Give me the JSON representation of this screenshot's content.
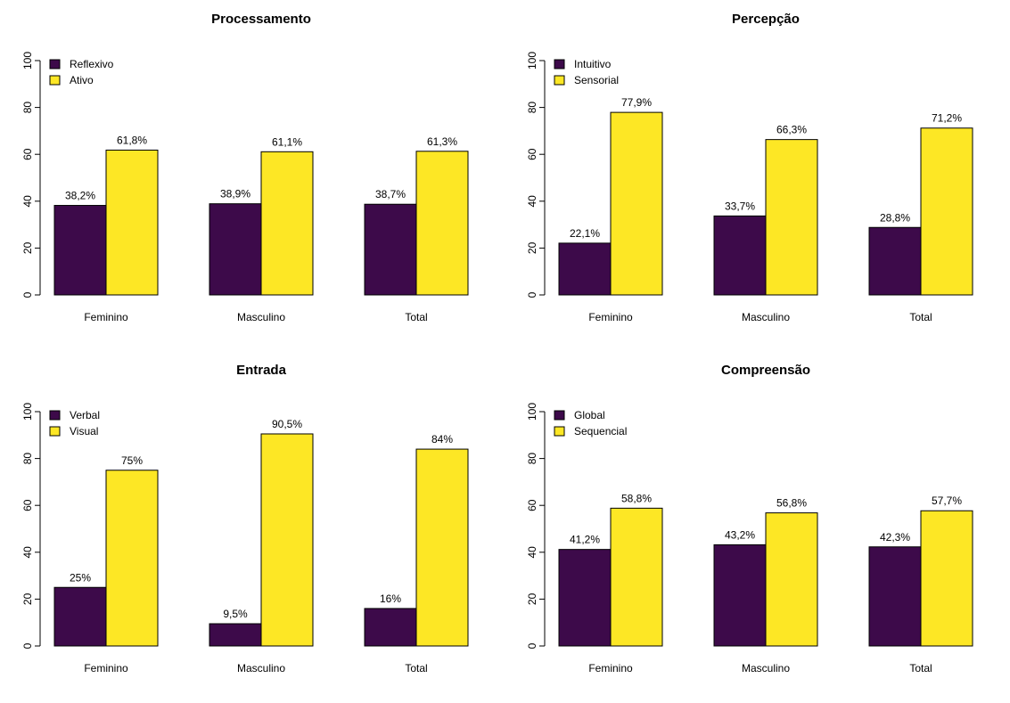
{
  "colors": {
    "series_1": "#3d0a4a",
    "series_2": "#fde725"
  },
  "chart_data": [
    {
      "type": "bar",
      "title": "Processamento",
      "categories": [
        "Feminino",
        "Masculino",
        "Total"
      ],
      "series": [
        {
          "name": "Reflexivo",
          "values": [
            38.2,
            38.9,
            38.7
          ],
          "labels": [
            "38,2%",
            "38,9%",
            "38,7%"
          ]
        },
        {
          "name": "Ativo",
          "values": [
            61.8,
            61.1,
            61.3
          ],
          "labels": [
            "61,8%",
            "61,1%",
            "61,3%"
          ]
        }
      ],
      "yticks": [
        "0",
        "20",
        "40",
        "60",
        "80",
        "100"
      ],
      "ylim": [
        0,
        100
      ],
      "legend_position": "top-left",
      "grid": false
    },
    {
      "type": "bar",
      "title": "Percepção",
      "categories": [
        "Feminino",
        "Masculino",
        "Total"
      ],
      "series": [
        {
          "name": "Intuitivo",
          "values": [
            22.1,
            33.7,
            28.8
          ],
          "labels": [
            "22,1%",
            "33,7%",
            "28,8%"
          ]
        },
        {
          "name": "Sensorial",
          "values": [
            77.9,
            66.3,
            71.2
          ],
          "labels": [
            "77,9%",
            "66,3%",
            "71,2%"
          ]
        }
      ],
      "yticks": [
        "0",
        "20",
        "40",
        "60",
        "80",
        "100"
      ],
      "ylim": [
        0,
        100
      ],
      "legend_position": "top-left",
      "grid": false
    },
    {
      "type": "bar",
      "title": "Entrada",
      "categories": [
        "Feminino",
        "Masculino",
        "Total"
      ],
      "series": [
        {
          "name": "Verbal",
          "values": [
            25,
            9.5,
            16
          ],
          "labels": [
            "25%",
            "9,5%",
            "16%"
          ]
        },
        {
          "name": "Visual",
          "values": [
            75,
            90.5,
            84
          ],
          "labels": [
            "75%",
            "90,5%",
            "84%"
          ]
        }
      ],
      "yticks": [
        "0",
        "20",
        "40",
        "60",
        "80",
        "100"
      ],
      "ylim": [
        0,
        100
      ],
      "legend_position": "top-left",
      "grid": false
    },
    {
      "type": "bar",
      "title": "Compreensão",
      "categories": [
        "Feminino",
        "Masculino",
        "Total"
      ],
      "series": [
        {
          "name": "Global",
          "values": [
            41.2,
            43.2,
            42.3
          ],
          "labels": [
            "41,2%",
            "43,2%",
            "42,3%"
          ]
        },
        {
          "name": "Sequencial",
          "values": [
            58.8,
            56.8,
            57.7
          ],
          "labels": [
            "58,8%",
            "56,8%",
            "57,7%"
          ]
        }
      ],
      "yticks": [
        "0",
        "20",
        "40",
        "60",
        "80",
        "100"
      ],
      "ylim": [
        0,
        100
      ],
      "legend_position": "top-left",
      "grid": false
    }
  ]
}
